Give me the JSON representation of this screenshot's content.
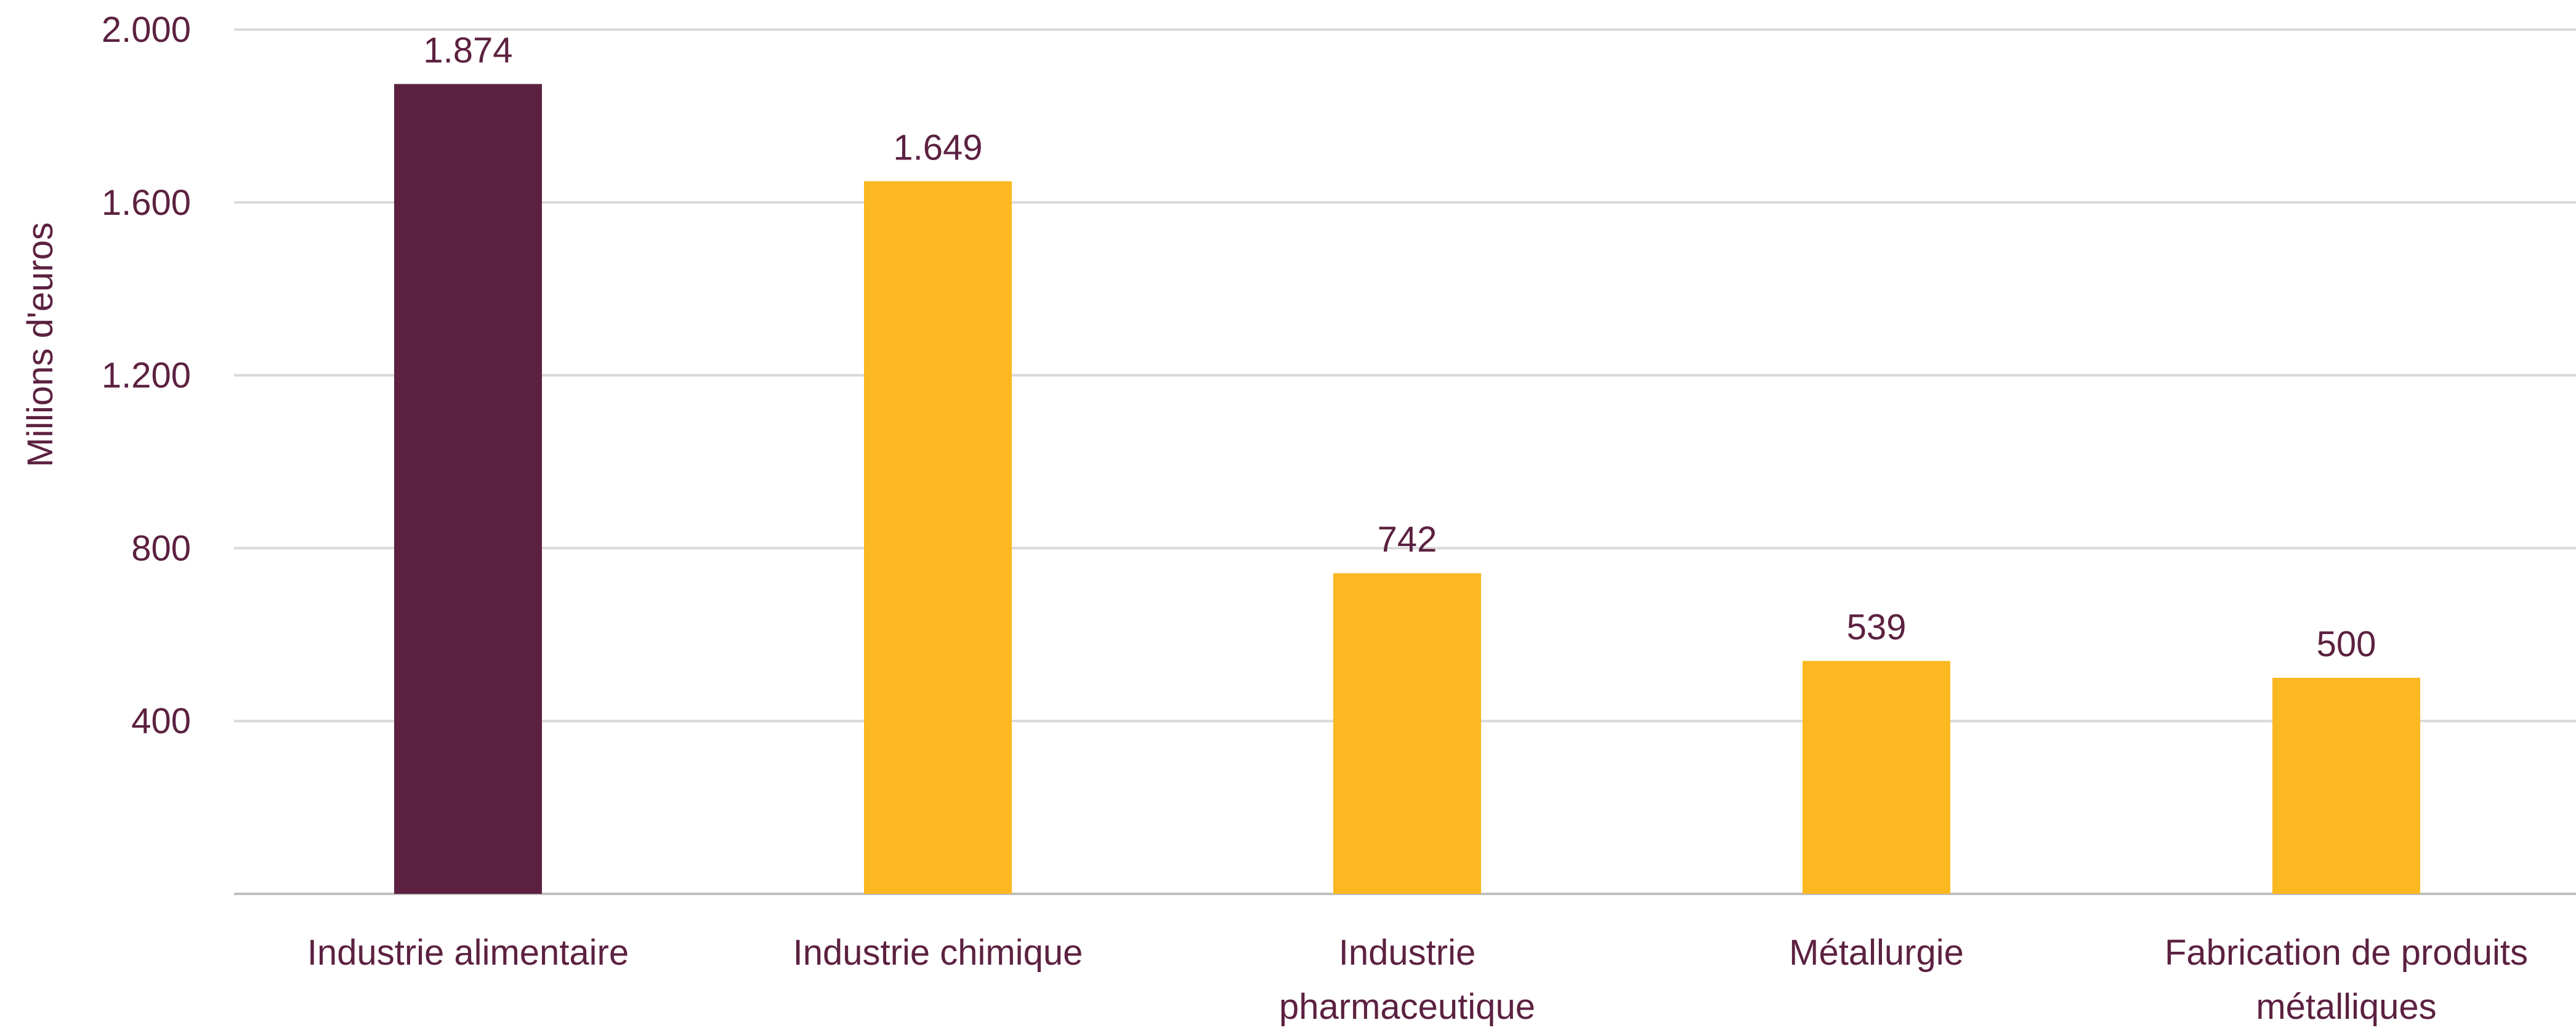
{
  "chart_data": {
    "type": "bar",
    "title": "",
    "xlabel": "",
    "ylabel": "Millions d'euros",
    "ylim": [
      0,
      2000
    ],
    "yticks": [
      400,
      800,
      1200,
      1600,
      2000
    ],
    "ytick_labels": [
      "400",
      "800",
      "1.200",
      "1.600",
      "2.000"
    ],
    "grid": true,
    "legend": "none",
    "categories": [
      [
        "Industrie alimentaire"
      ],
      [
        "Industrie chimique"
      ],
      [
        "Industrie",
        "pharmaceutique"
      ],
      [
        "Métallurgie"
      ],
      [
        "Fabrication de produits",
        "métalliques"
      ]
    ],
    "values": [
      1874,
      1649,
      742,
      539,
      500
    ],
    "value_labels": [
      "1.874",
      "1.649",
      "742",
      "539",
      "500"
    ],
    "colors": {
      "highlight": "#5C2141",
      "default": "#FBB820",
      "text": "#5C2141"
    },
    "highlight_index": 0
  }
}
